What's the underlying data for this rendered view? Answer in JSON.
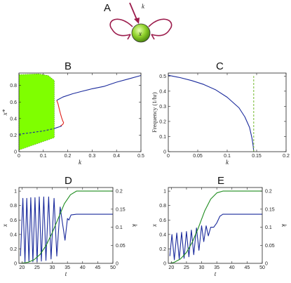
{
  "panels": {
    "A": "A",
    "B": "B",
    "C": "C",
    "D": "D",
    "E": "E"
  },
  "diagram": {
    "node_label": "x",
    "input_label": "k",
    "colors": {
      "node_fill": "#8fd12a",
      "edge": "#9b1b4b"
    }
  },
  "chart_data": [
    {
      "id": "B",
      "type": "line",
      "xlabel": "k",
      "ylabel": "x*",
      "xlim": [
        0,
        0.5
      ],
      "ylim": [
        0,
        0.95
      ],
      "xticks": [
        "0",
        "0.1",
        "0.2",
        "0.3",
        "0.4",
        "0.5"
      ],
      "yticks": [
        "0",
        "0.2",
        "0.4",
        "0.6",
        "0.8"
      ],
      "oscillation_band": {
        "k_range": [
          0,
          0.145
        ],
        "upper": [
          [
            0,
            0.93
          ],
          [
            0.08,
            0.94
          ],
          [
            0.12,
            0.92
          ],
          [
            0.145,
            0.86
          ]
        ],
        "lower": [
          [
            0,
            0.02
          ],
          [
            0.145,
            0.17
          ]
        ],
        "color": "#7fff00"
      },
      "series": [
        {
          "style": "stable-upper",
          "color": "#1a2a9c",
          "points": [
            [
              0.155,
              0.62
            ],
            [
              0.18,
              0.66
            ],
            [
              0.22,
              0.7
            ],
            [
              0.26,
              0.73
            ],
            [
              0.3,
              0.76
            ],
            [
              0.35,
              0.79
            ],
            [
              0.4,
              0.84
            ],
            [
              0.45,
              0.88
            ],
            [
              0.5,
              0.92
            ]
          ]
        },
        {
          "style": "unstable-middle",
          "color": "#e0201a",
          "points": [
            [
              0.155,
              0.62
            ],
            [
              0.16,
              0.58
            ],
            [
              0.165,
              0.52
            ],
            [
              0.17,
              0.46
            ],
            [
              0.175,
              0.41
            ],
            [
              0.18,
              0.37
            ],
            [
              0.183,
              0.35
            ],
            [
              0.18,
              0.33
            ],
            [
              0.17,
              0.31
            ]
          ]
        },
        {
          "style": "stable-lower",
          "color": "#1a2a9c",
          "points": [
            [
              0.145,
              0.28
            ],
            [
              0.155,
              0.29
            ],
            [
              0.165,
              0.3
            ],
            [
              0.175,
              0.31
            ]
          ]
        },
        {
          "style": "unstable-lower",
          "color": "#1a2a9c",
          "dashed": true,
          "points": [
            [
              0,
              0.21
            ],
            [
              0.05,
              0.23
            ],
            [
              0.1,
              0.25
            ],
            [
              0.145,
              0.28
            ]
          ]
        }
      ]
    },
    {
      "id": "C",
      "type": "line",
      "xlabel": "k",
      "ylabel": "Frequency (1/hr)",
      "xlim": [
        0,
        0.2
      ],
      "ylim": [
        0,
        0.52
      ],
      "xticks": [
        "0",
        "0.05",
        "0.1",
        "0.15",
        "0.2"
      ],
      "yticks": [
        "0",
        "0.1",
        "0.2",
        "0.3",
        "0.4",
        "0.5"
      ],
      "series": [
        {
          "color": "#1a2a9c",
          "points": [
            [
              0,
              0.505
            ],
            [
              0.02,
              0.49
            ],
            [
              0.04,
              0.47
            ],
            [
              0.06,
              0.445
            ],
            [
              0.08,
              0.41
            ],
            [
              0.1,
              0.36
            ],
            [
              0.12,
              0.29
            ],
            [
              0.13,
              0.23
            ],
            [
              0.138,
              0.16
            ],
            [
              0.142,
              0.09
            ],
            [
              0.144,
              0.04
            ],
            [
              0.145,
              0.0
            ]
          ]
        },
        {
          "color": "#7fbf3f",
          "dashed": true,
          "points": [
            [
              0.145,
              0.0
            ],
            [
              0.145,
              0.5
            ]
          ]
        }
      ]
    },
    {
      "id": "D",
      "type": "line",
      "xlabel": "t",
      "ylabel": "x",
      "ylabel_right": "k",
      "xlim": [
        19,
        50
      ],
      "ylim": [
        0,
        1.05
      ],
      "ylim_right": [
        0,
        0.21
      ],
      "xticks": [
        "20",
        "25",
        "30",
        "35",
        "40",
        "45",
        "50"
      ],
      "yticks": [
        "0",
        "0.2",
        "0.4",
        "0.6",
        "0.8",
        "1"
      ],
      "yticks_right": [
        "0",
        "0.05",
        "0.1",
        "0.15",
        "0.2"
      ],
      "series": [
        {
          "axis": "left",
          "color": "#1a2a9c",
          "points": [
            [
              19.5,
              0.1
            ],
            [
              20.3,
              0.9
            ],
            [
              21.0,
              0.02
            ],
            [
              21.6,
              0.9
            ],
            [
              22.3,
              0.02
            ],
            [
              22.9,
              0.91
            ],
            [
              23.6,
              0.02
            ],
            [
              24.3,
              0.91
            ],
            [
              25.0,
              0.02
            ],
            [
              25.7,
              0.92
            ],
            [
              26.4,
              0.03
            ],
            [
              27.2,
              0.92
            ],
            [
              27.9,
              0.04
            ],
            [
              28.8,
              0.92
            ],
            [
              29.6,
              0.06
            ],
            [
              30.6,
              0.9
            ],
            [
              31.5,
              0.1
            ],
            [
              32.6,
              0.78
            ],
            [
              33.4,
              0.55
            ],
            [
              34.2,
              0.32
            ],
            [
              35.0,
              0.62
            ],
            [
              35.5,
              0.6
            ],
            [
              36.2,
              0.67
            ],
            [
              38,
              0.68
            ],
            [
              50,
              0.68
            ]
          ]
        },
        {
          "axis": "right",
          "color": "#1e8c1e",
          "points": [
            [
              19.5,
              0.0
            ],
            [
              22,
              0.003
            ],
            [
              24,
              0.01
            ],
            [
              26,
              0.025
            ],
            [
              28,
              0.05
            ],
            [
              30,
              0.085
            ],
            [
              32,
              0.125
            ],
            [
              34,
              0.165
            ],
            [
              36,
              0.19
            ],
            [
              38,
              0.2
            ],
            [
              40,
              0.2
            ],
            [
              50,
              0.2
            ]
          ]
        }
      ]
    },
    {
      "id": "E",
      "type": "line",
      "xlabel": "t",
      "ylabel": "x",
      "ylabel_right": "k",
      "xlim": [
        19,
        50
      ],
      "ylim": [
        0,
        1.05
      ],
      "ylim_right": [
        0,
        0.21
      ],
      "xticks": [
        "20",
        "25",
        "30",
        "35",
        "40",
        "45",
        "50"
      ],
      "yticks": [
        "0",
        "0.2",
        "0.4",
        "0.6",
        "0.8",
        "1"
      ],
      "yticks_right": [
        "0",
        "0.05",
        "0.1",
        "0.15",
        "0.2"
      ],
      "series": [
        {
          "axis": "left",
          "color": "#1a2a9c",
          "points": [
            [
              19.5,
              0.1
            ],
            [
              20.2,
              0.4
            ],
            [
              21.0,
              0.05
            ],
            [
              21.8,
              0.42
            ],
            [
              22.6,
              0.06
            ],
            [
              23.4,
              0.43
            ],
            [
              24.2,
              0.07
            ],
            [
              25.0,
              0.44
            ],
            [
              25.8,
              0.09
            ],
            [
              26.6,
              0.46
            ],
            [
              27.4,
              0.12
            ],
            [
              28.3,
              0.49
            ],
            [
              29.1,
              0.18
            ],
            [
              30.0,
              0.52
            ],
            [
              30.7,
              0.3
            ],
            [
              31.5,
              0.52
            ],
            [
              32.2,
              0.38
            ],
            [
              33.0,
              0.5
            ],
            [
              34.0,
              0.5
            ],
            [
              35.0,
              0.56
            ],
            [
              36.0,
              0.65
            ],
            [
              37.0,
              0.68
            ],
            [
              50,
              0.68
            ]
          ]
        },
        {
          "axis": "right",
          "color": "#1e8c1e",
          "points": [
            [
              19.5,
              0.0
            ],
            [
              21,
              0.003
            ],
            [
              23,
              0.012
            ],
            [
              25,
              0.03
            ],
            [
              27,
              0.06
            ],
            [
              29,
              0.1
            ],
            [
              31,
              0.145
            ],
            [
              33,
              0.178
            ],
            [
              35,
              0.195
            ],
            [
              37,
              0.2
            ],
            [
              50,
              0.2
            ]
          ]
        }
      ]
    }
  ]
}
